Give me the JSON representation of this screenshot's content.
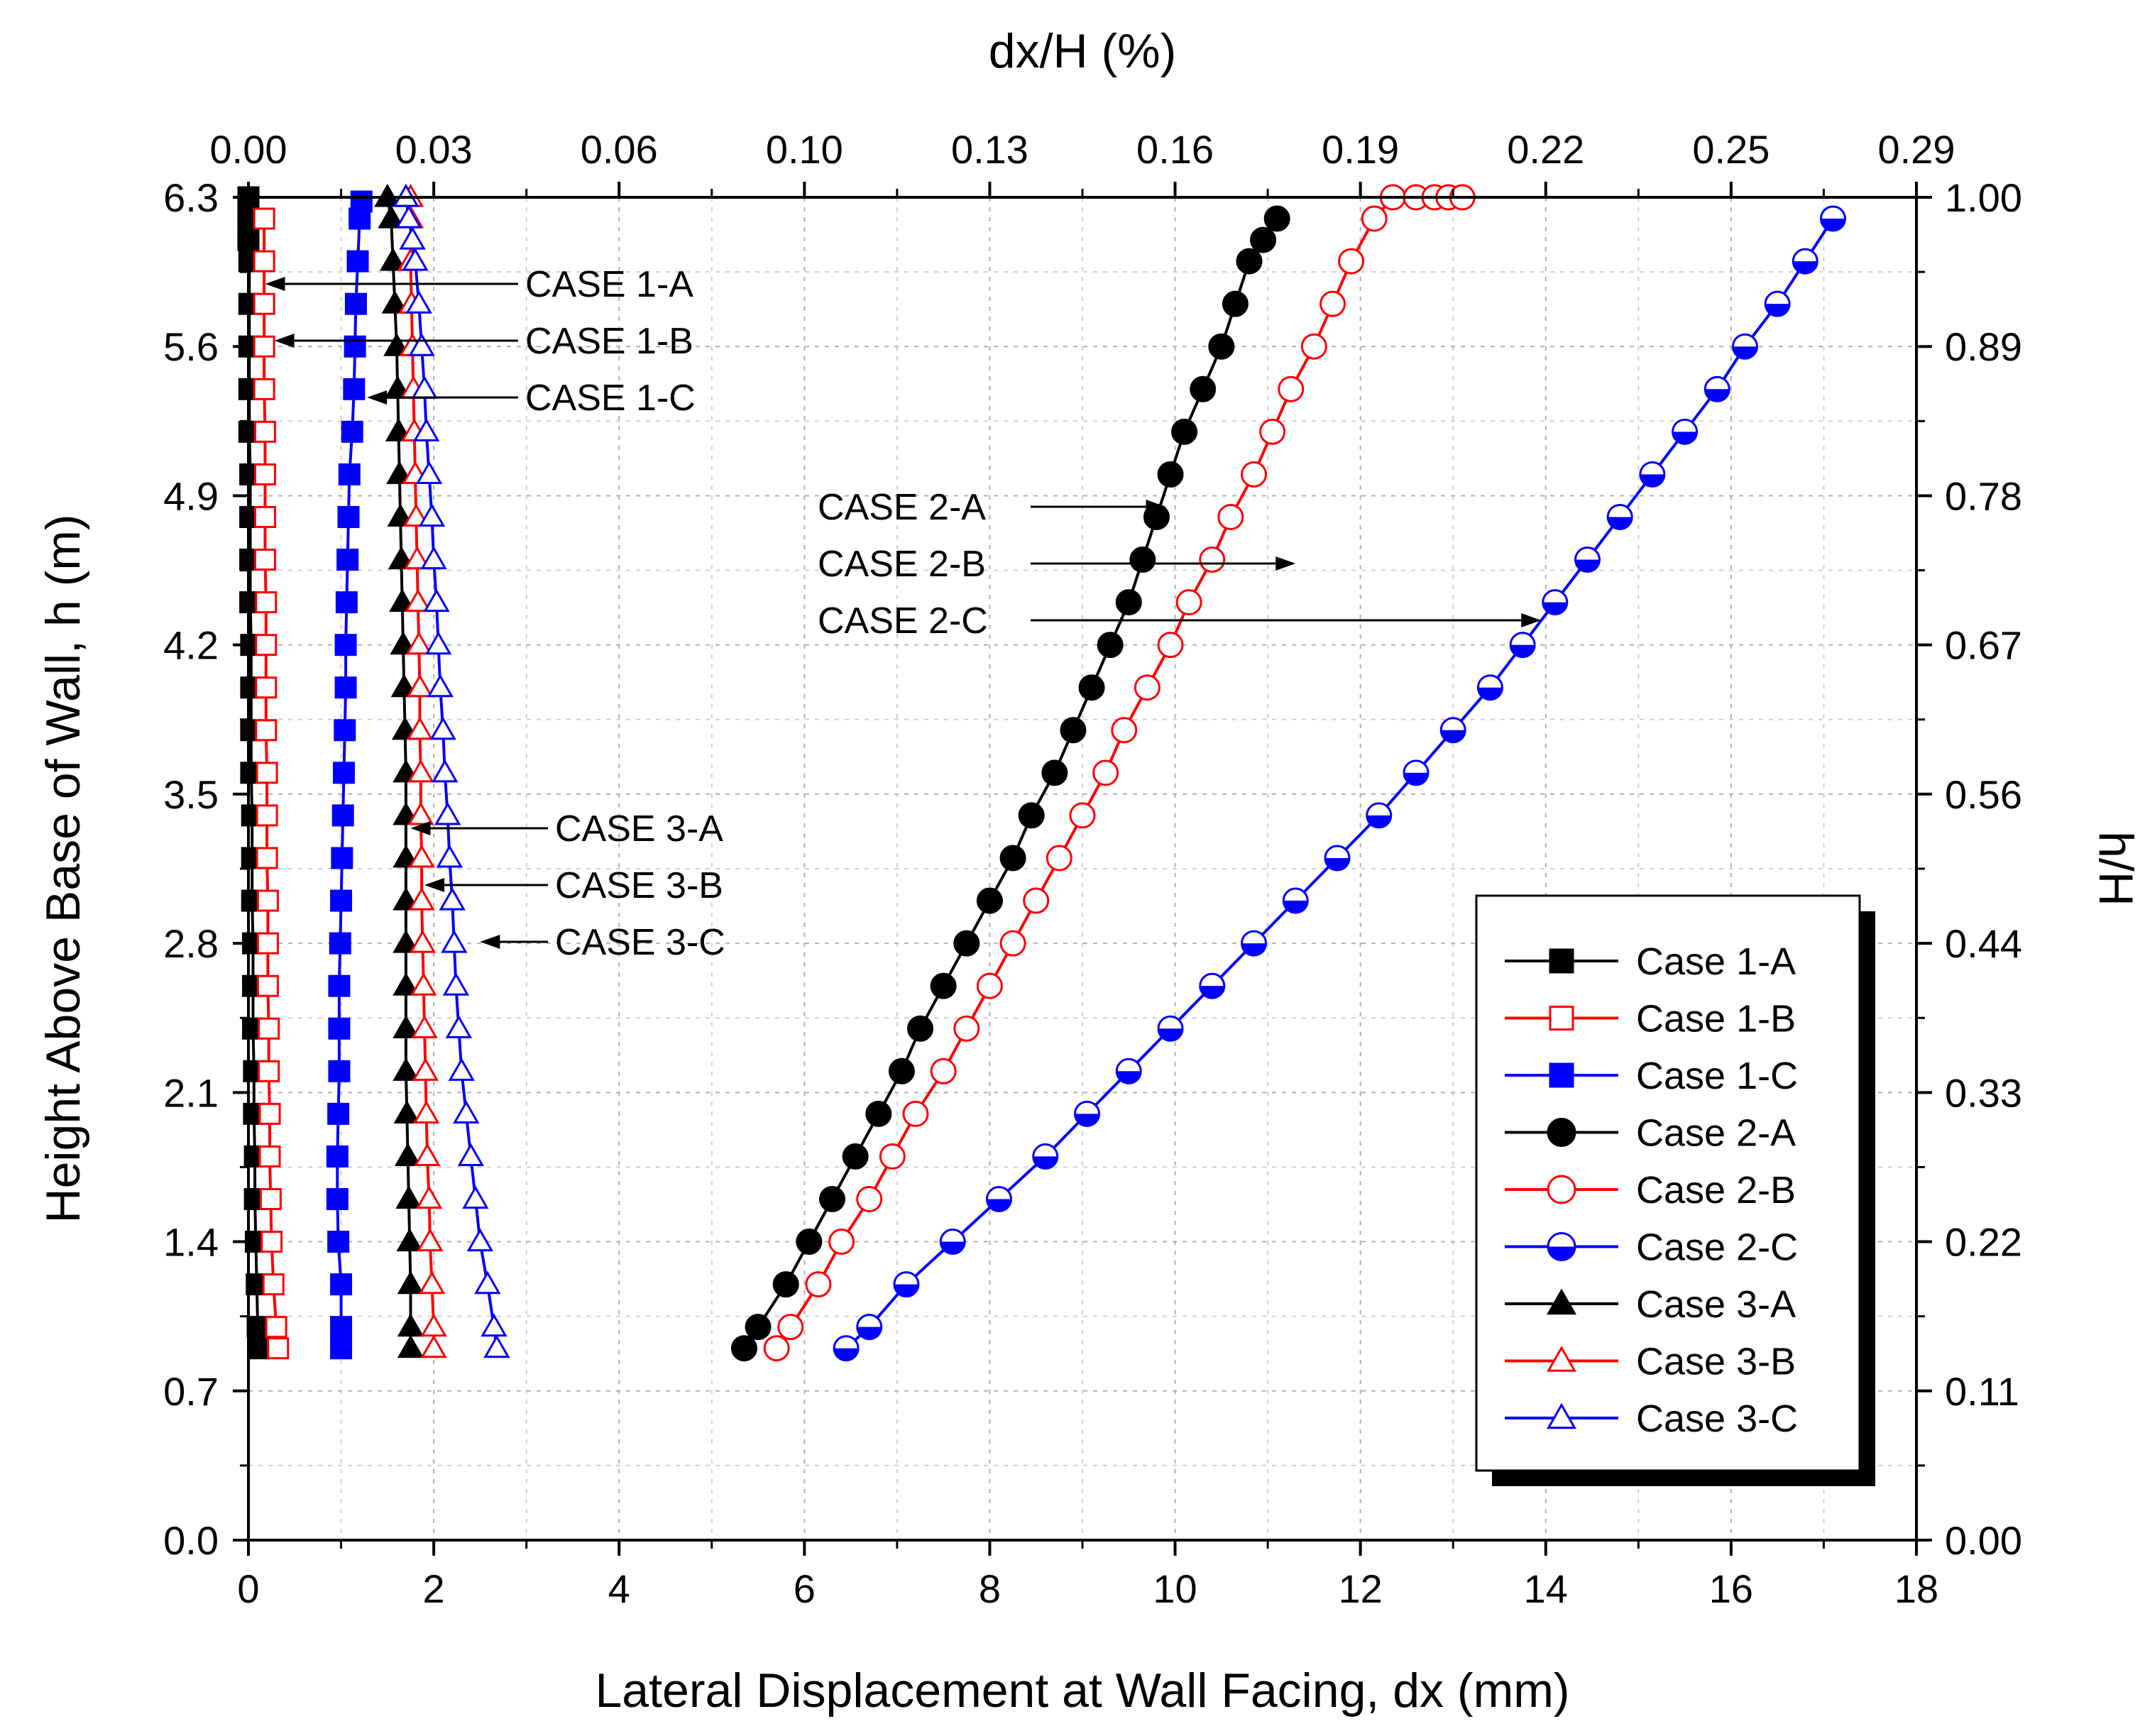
{
  "chart_data": {
    "type": "line",
    "xlabel": "Lateral Displacement at Wall Facing, dx (mm)",
    "ylabel": "Height Above Base of Wall, h (m)",
    "x2label": "dx/H (%)",
    "y2label": "h/H",
    "xlim": [
      0,
      18
    ],
    "ylim": [
      0,
      6.3
    ],
    "x_ticks": [
      "0",
      "2",
      "4",
      "6",
      "8",
      "10",
      "12",
      "14",
      "16",
      "18"
    ],
    "y_ticks": [
      "0.0",
      "0.7",
      "1.4",
      "2.1",
      "2.8",
      "3.5",
      "4.2",
      "4.9",
      "5.6",
      "6.3"
    ],
    "x2_ticks": [
      "0.00",
      "0.03",
      "0.06",
      "0.10",
      "0.13",
      "0.16",
      "0.19",
      "0.22",
      "0.25",
      "0.29"
    ],
    "y2_ticks": [
      "0.00",
      "0.11",
      "0.22",
      "0.33",
      "0.44",
      "0.56",
      "0.67",
      "0.78",
      "0.89",
      "1.00"
    ],
    "grid": true,
    "legend_position": "bottom-right",
    "annotations": [
      {
        "text": "CASE 1-A",
        "arrow_to": [
          0.18,
          5.95
        ]
      },
      {
        "text": "CASE 1-B",
        "arrow_to": [
          0.28,
          5.68
        ]
      },
      {
        "text": "CASE 1-C",
        "arrow_to": [
          1.28,
          5.42
        ]
      },
      {
        "text": "CASE 2-A",
        "arrow_to": [
          9.9,
          4.87
        ]
      },
      {
        "text": "CASE 2-B",
        "arrow_to": [
          11.3,
          4.6
        ]
      },
      {
        "text": "CASE 2-C",
        "arrow_to": [
          13.95,
          4.33
        ]
      },
      {
        "text": "CASE 3-A",
        "arrow_to": [
          1.75,
          3.34
        ]
      },
      {
        "text": "CASE 3-B",
        "arrow_to": [
          1.9,
          3.07
        ]
      },
      {
        "text": "CASE 3-C",
        "arrow_to": [
          2.5,
          2.8
        ]
      }
    ],
    "series": [
      {
        "name": "Case 1-A",
        "color": "#000000",
        "marker": "square",
        "fill": "full",
        "x": [
          0.11,
          0.1,
          0.09,
          0.08,
          0.07,
          0.07,
          0.06,
          0.06,
          0.05,
          0.05,
          0.05,
          0.04,
          0.04,
          0.04,
          0.03,
          0.03,
          0.03,
          0.03,
          0.02,
          0.02,
          0.02,
          0.02,
          0.01,
          0.01,
          0.01,
          0.01,
          0.01,
          0.0,
          0.0,
          0.0,
          0.0,
          0.0
        ],
        "y": [
          0.9,
          1.0,
          1.2,
          1.4,
          1.6,
          1.8,
          2.0,
          2.2,
          2.4,
          2.6,
          2.8,
          3.0,
          3.2,
          3.4,
          3.6,
          3.8,
          4.0,
          4.2,
          4.4,
          4.6,
          4.8,
          5.0,
          5.2,
          5.4,
          5.6,
          5.8,
          6.0,
          6.1,
          6.2,
          6.3,
          6.3,
          6.3
        ]
      },
      {
        "name": "Case 1-B",
        "color": "#ff0000",
        "marker": "square",
        "fill": "open",
        "x": [
          0.32,
          0.3,
          0.27,
          0.25,
          0.24,
          0.23,
          0.23,
          0.22,
          0.22,
          0.21,
          0.21,
          0.21,
          0.2,
          0.2,
          0.2,
          0.19,
          0.19,
          0.19,
          0.19,
          0.18,
          0.18,
          0.18,
          0.18,
          0.17,
          0.17,
          0.17,
          0.17,
          0.17
        ],
        "y": [
          0.9,
          1.0,
          1.2,
          1.4,
          1.6,
          1.8,
          2.0,
          2.2,
          2.4,
          2.6,
          2.8,
          3.0,
          3.2,
          3.4,
          3.6,
          3.8,
          4.0,
          4.2,
          4.4,
          4.6,
          4.8,
          5.0,
          5.2,
          5.4,
          5.6,
          5.8,
          6.0,
          6.2
        ]
      },
      {
        "name": "Case 1-C",
        "color": "#0000ff",
        "marker": "square",
        "fill": "full",
        "x": [
          1.0,
          1.0,
          1.0,
          0.97,
          0.96,
          0.96,
          0.97,
          0.98,
          0.98,
          0.98,
          0.99,
          1.0,
          1.01,
          1.02,
          1.03,
          1.04,
          1.05,
          1.05,
          1.06,
          1.07,
          1.08,
          1.09,
          1.12,
          1.14,
          1.15,
          1.16,
          1.18,
          1.2,
          1.22
        ],
        "y": [
          0.9,
          1.0,
          1.2,
          1.4,
          1.6,
          1.8,
          2.0,
          2.2,
          2.4,
          2.6,
          2.8,
          3.0,
          3.2,
          3.4,
          3.6,
          3.8,
          4.0,
          4.2,
          4.4,
          4.6,
          4.8,
          5.0,
          5.2,
          5.4,
          5.6,
          5.8,
          6.0,
          6.2,
          6.28
        ]
      },
      {
        "name": "Case 2-A",
        "color": "#000000",
        "marker": "circle",
        "fill": "full",
        "x": [
          5.35,
          5.5,
          5.8,
          6.05,
          6.3,
          6.55,
          6.8,
          7.05,
          7.25,
          7.5,
          7.75,
          8.0,
          8.25,
          8.45,
          8.7,
          8.9,
          9.1,
          9.3,
          9.5,
          9.65,
          9.8,
          9.95,
          10.1,
          10.3,
          10.5,
          10.65,
          10.8,
          10.95,
          11.1
        ],
        "y": [
          0.9,
          1.0,
          1.2,
          1.4,
          1.6,
          1.8,
          2.0,
          2.2,
          2.4,
          2.6,
          2.8,
          3.0,
          3.2,
          3.4,
          3.6,
          3.8,
          4.0,
          4.2,
          4.4,
          4.6,
          4.8,
          5.0,
          5.2,
          5.4,
          5.6,
          5.8,
          6.0,
          6.1,
          6.2
        ]
      },
      {
        "name": "Case 2-B",
        "color": "#ff0000",
        "marker": "circle",
        "fill": "open",
        "x": [
          5.7,
          5.85,
          6.15,
          6.4,
          6.7,
          6.95,
          7.2,
          7.5,
          7.75,
          8.0,
          8.25,
          8.5,
          8.75,
          9.0,
          9.25,
          9.45,
          9.7,
          9.95,
          10.15,
          10.4,
          10.6,
          10.85,
          11.05,
          11.25,
          11.5,
          11.7,
          11.9,
          12.15,
          12.35,
          12.6,
          12.8,
          12.95,
          13.1
        ],
        "y": [
          0.9,
          1.0,
          1.2,
          1.4,
          1.6,
          1.8,
          2.0,
          2.2,
          2.4,
          2.6,
          2.8,
          3.0,
          3.2,
          3.4,
          3.6,
          3.8,
          4.0,
          4.2,
          4.4,
          4.6,
          4.8,
          5.0,
          5.2,
          5.4,
          5.6,
          5.8,
          6.0,
          6.2,
          6.3,
          6.3,
          6.3,
          6.3,
          6.3
        ]
      },
      {
        "name": "Case 2-C",
        "color": "#0000ff",
        "marker": "circle",
        "fill": "half",
        "x": [
          6.45,
          6.7,
          7.1,
          7.6,
          8.1,
          8.6,
          9.05,
          9.5,
          9.95,
          10.4,
          10.85,
          11.3,
          11.75,
          12.2,
          12.6,
          13.0,
          13.4,
          13.75,
          14.1,
          14.45,
          14.8,
          15.15,
          15.5,
          15.85,
          16.15,
          16.5,
          16.8,
          17.1
        ],
        "y": [
          0.9,
          1.0,
          1.2,
          1.4,
          1.6,
          1.8,
          2.0,
          2.2,
          2.4,
          2.6,
          2.8,
          3.0,
          3.2,
          3.4,
          3.6,
          3.8,
          4.0,
          4.2,
          4.4,
          4.6,
          4.8,
          5.0,
          5.2,
          5.4,
          5.6,
          5.8,
          6.0,
          6.2
        ]
      },
      {
        "name": "Case 3-A",
        "color": "#000000",
        "marker": "triangle",
        "fill": "full",
        "x": [
          1.75,
          1.75,
          1.75,
          1.74,
          1.73,
          1.72,
          1.71,
          1.7,
          1.7,
          1.7,
          1.7,
          1.7,
          1.7,
          1.7,
          1.7,
          1.69,
          1.68,
          1.67,
          1.66,
          1.65,
          1.64,
          1.63,
          1.62,
          1.61,
          1.6,
          1.58,
          1.56,
          1.54,
          1.5
        ],
        "y": [
          0.9,
          1.0,
          1.2,
          1.4,
          1.6,
          1.8,
          2.0,
          2.2,
          2.4,
          2.6,
          2.8,
          3.0,
          3.2,
          3.4,
          3.6,
          3.8,
          4.0,
          4.2,
          4.4,
          4.6,
          4.8,
          5.0,
          5.2,
          5.4,
          5.6,
          5.8,
          6.0,
          6.2,
          6.3
        ]
      },
      {
        "name": "Case 3-B",
        "color": "#ff0000",
        "marker": "triangle",
        "fill": "open",
        "x": [
          2.0,
          2.0,
          1.98,
          1.96,
          1.95,
          1.93,
          1.92,
          1.91,
          1.9,
          1.89,
          1.88,
          1.87,
          1.87,
          1.86,
          1.86,
          1.85,
          1.85,
          1.84,
          1.83,
          1.82,
          1.81,
          1.8,
          1.79,
          1.78,
          1.77,
          1.76,
          1.75,
          1.75,
          1.75
        ],
        "y": [
          0.9,
          1.0,
          1.2,
          1.4,
          1.6,
          1.8,
          2.0,
          2.2,
          2.4,
          2.6,
          2.8,
          3.0,
          3.2,
          3.4,
          3.6,
          3.8,
          4.0,
          4.2,
          4.4,
          4.6,
          4.8,
          5.0,
          5.2,
          5.4,
          5.6,
          5.8,
          6.0,
          6.2,
          6.3
        ]
      },
      {
        "name": "Case 3-C",
        "color": "#0000ff",
        "marker": "triangle",
        "fill": "open",
        "x": [
          2.68,
          2.65,
          2.58,
          2.5,
          2.45,
          2.4,
          2.35,
          2.3,
          2.27,
          2.24,
          2.22,
          2.2,
          2.17,
          2.15,
          2.12,
          2.1,
          2.07,
          2.05,
          2.03,
          2.0,
          1.98,
          1.95,
          1.92,
          1.9,
          1.87,
          1.84,
          1.8,
          1.77,
          1.73,
          1.7
        ],
        "y": [
          0.9,
          1.0,
          1.2,
          1.4,
          1.6,
          1.8,
          2.0,
          2.2,
          2.4,
          2.6,
          2.8,
          3.0,
          3.2,
          3.4,
          3.6,
          3.8,
          4.0,
          4.2,
          4.4,
          4.6,
          4.8,
          5.0,
          5.2,
          5.4,
          5.6,
          5.8,
          6.0,
          6.1,
          6.2,
          6.3
        ]
      }
    ]
  }
}
